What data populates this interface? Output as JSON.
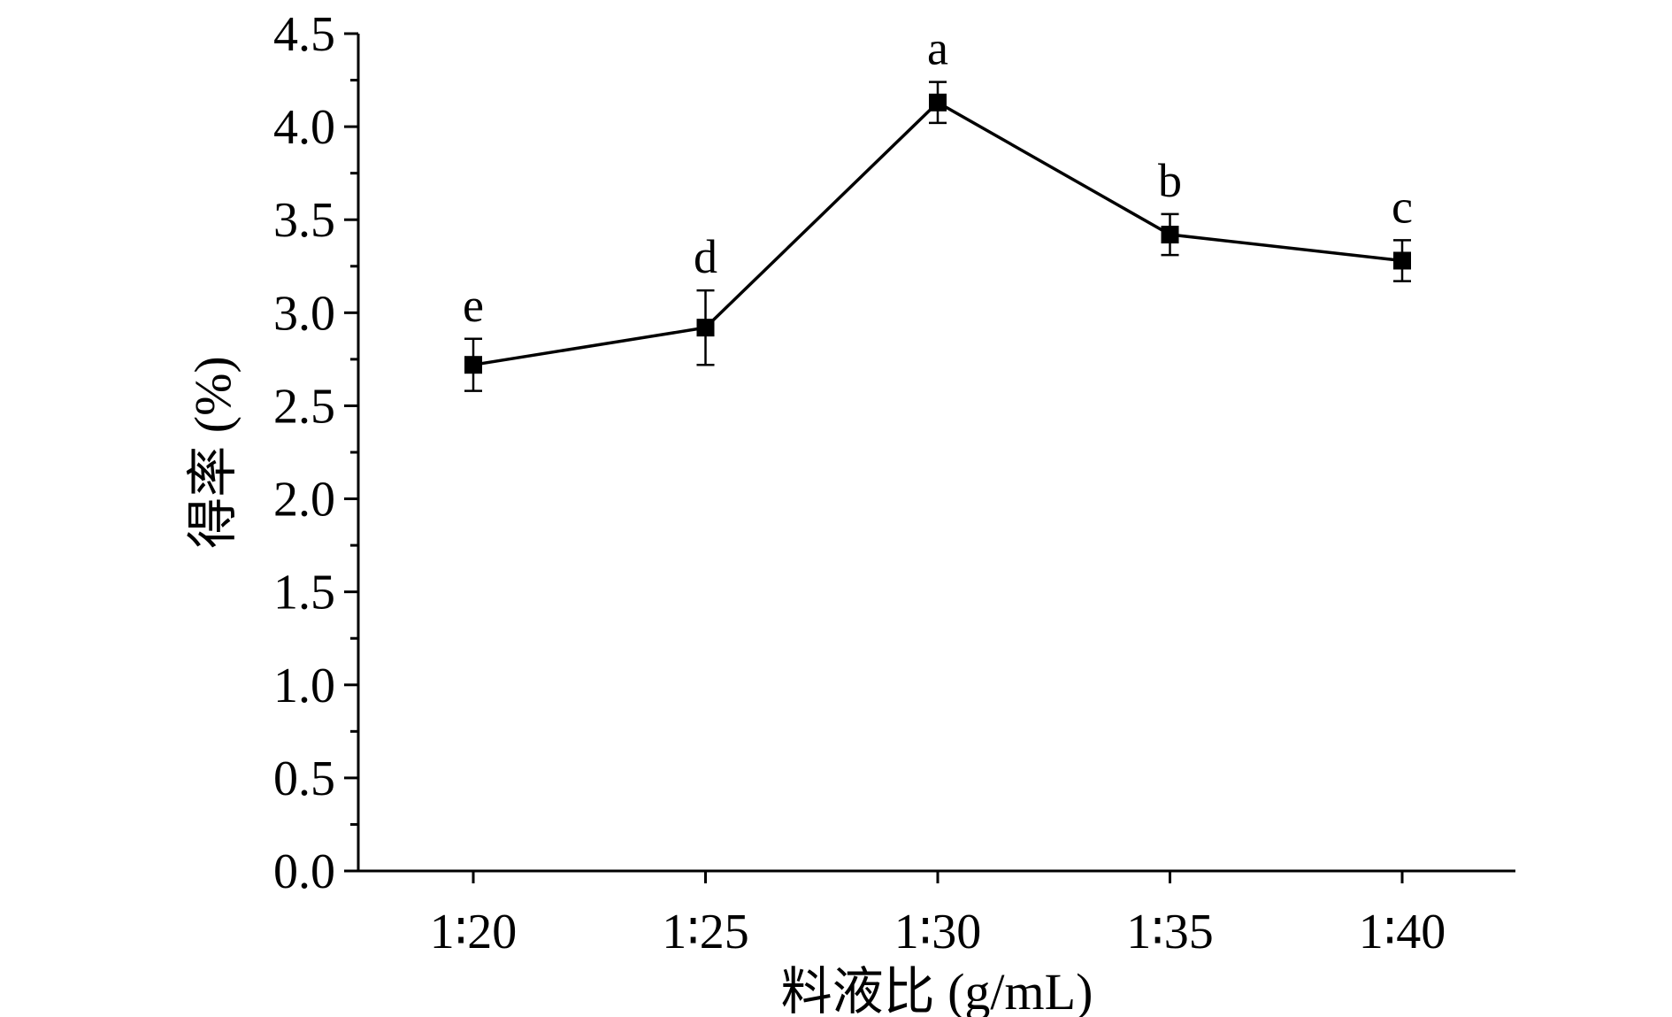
{
  "chart_data": {
    "type": "line",
    "categories": [
      "1∶20",
      "1∶25",
      "1∶30",
      "1∶35",
      "1∶40"
    ],
    "values": [
      2.72,
      2.92,
      4.13,
      3.42,
      3.28
    ],
    "errors": [
      0.14,
      0.2,
      0.11,
      0.11,
      0.11
    ],
    "point_labels": [
      "e",
      "d",
      "a",
      "b",
      "c"
    ],
    "xlabel": "料液比 (g/mL)",
    "ylabel": "得率 (%)",
    "ylim": [
      0,
      4.5
    ],
    "yticks": [
      "0.0",
      "0.5",
      "1.0",
      "1.5",
      "2.0",
      "2.5",
      "3.0",
      "3.5",
      "4.0",
      "4.5"
    ],
    "grid": false,
    "legend": "none",
    "color": "#000000"
  }
}
